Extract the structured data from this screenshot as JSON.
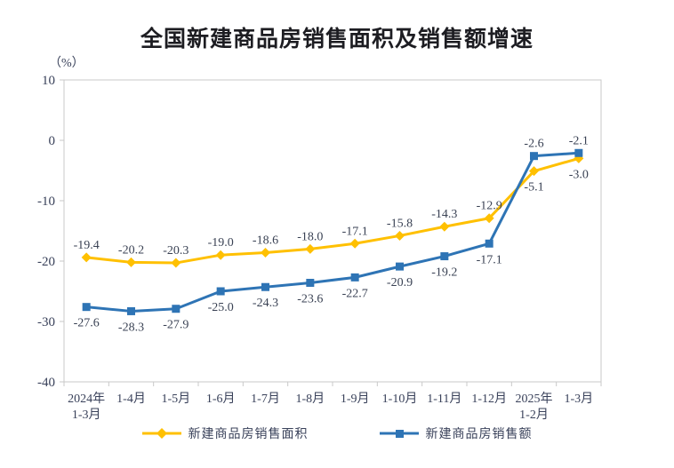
{
  "chart_data": {
    "type": "line",
    "title": "全国新建商品房销售面积及销售额增速",
    "unit_label": "（%）",
    "xlabel": "",
    "ylabel": "（%）",
    "ylim": [
      -40,
      10
    ],
    "yticks": [
      10,
      0,
      -10,
      -20,
      -30,
      -40
    ],
    "grid": false,
    "legend_position": "bottom",
    "categories": [
      [
        "2024年",
        "1-3月"
      ],
      [
        "1-4月"
      ],
      [
        "1-5月"
      ],
      [
        "1-6月"
      ],
      [
        "1-7月"
      ],
      [
        "1-8月"
      ],
      [
        "1-9月"
      ],
      [
        "1-10月"
      ],
      [
        "1-11月"
      ],
      [
        "1-12月"
      ],
      [
        "2025年",
        "1-2月"
      ],
      [
        "1-3月"
      ]
    ],
    "series": [
      {
        "name": "新建商品房销售面积",
        "color": "#FFC000",
        "marker": "diamond",
        "label_position": "above",
        "label_position_overrides": {
          "10": "below",
          "11": "below"
        },
        "values": [
          -19.4,
          -20.2,
          -20.3,
          -19.0,
          -18.6,
          -18.0,
          -17.1,
          -15.8,
          -14.3,
          -12.9,
          -5.1,
          -3.0
        ]
      },
      {
        "name": "新建商品房销售额",
        "color": "#2E74B5",
        "marker": "square",
        "label_position": "below",
        "label_position_overrides": {
          "10": "above",
          "11": "above"
        },
        "values": [
          -27.6,
          -28.3,
          -27.9,
          -25.0,
          -24.3,
          -23.6,
          -22.7,
          -20.9,
          -19.2,
          -17.1,
          -2.6,
          -2.1
        ]
      }
    ],
    "style": {
      "axis_color": "#c9c9c9",
      "label_color": "#39415a",
      "data_label_color": "#3a4254"
    }
  }
}
